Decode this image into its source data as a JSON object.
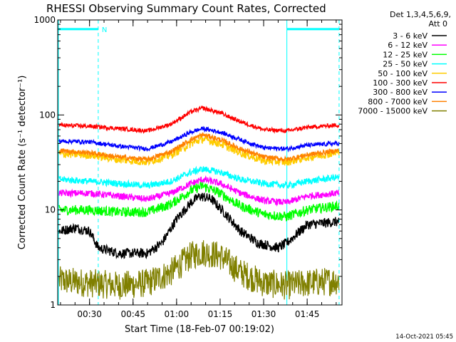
{
  "chart_data": {
    "type": "line",
    "title": "RHESSI Observing Summary Count Rates, Corrected",
    "xlabel": "Start Time (18-Feb-07 00:19:02)",
    "ylabel": "Corrected Count Rate (s⁻¹ detector⁻¹)",
    "yscale": "log",
    "ylim": [
      1,
      1000
    ],
    "xlim": [
      "00:19:02",
      "01:57:00"
    ],
    "x_ticks": [
      "00:30",
      "00:45",
      "01:00",
      "01:15",
      "01:30",
      "01:45"
    ],
    "y_ticks": [
      "1",
      "10",
      "100",
      "1000"
    ],
    "legend_header": [
      "Det 1,3,4,5,6,9,",
      "Att 0"
    ],
    "legend_position": "right",
    "timestamp": "14-Oct-2021 05:45",
    "annotations": [
      {
        "text": "N",
        "x": "00:33"
      }
    ],
    "night_bars": [
      {
        "start": "00:19:02",
        "end": "00:33:00",
        "y": 800
      },
      {
        "start": "01:38:00",
        "end": "01:56:00",
        "y": 800
      }
    ],
    "boundaries": [
      "00:33:00",
      "01:38:00",
      "01:56:00"
    ],
    "series": [
      {
        "name": "3 - 6 keV",
        "color": "#000000",
        "values_desc": "",
        "times": [
          "00:20",
          "00:25",
          "00:30",
          "00:33",
          "00:40",
          "00:50",
          "00:55",
          "01:00",
          "01:05",
          "01:08",
          "01:12",
          "01:17",
          "01:22",
          "01:28",
          "01:35",
          "01:38",
          "01:45",
          "01:55"
        ],
        "values": [
          6,
          6.5,
          6,
          4,
          3.5,
          3.5,
          4.5,
          8,
          12,
          14,
          13,
          9,
          6,
          4.5,
          4,
          4.5,
          7,
          7.5
        ]
      },
      {
        "name": "6 - 12 keV",
        "color": "#ff00ff",
        "times": [
          "00:20",
          "00:30",
          "00:40",
          "00:50",
          "00:58",
          "01:05",
          "01:09",
          "01:15",
          "01:22",
          "01:30",
          "01:38",
          "01:45",
          "01:55"
        ],
        "values": [
          15,
          15,
          14,
          13,
          15,
          19,
          21,
          19,
          15,
          12.5,
          12,
          14,
          15
        ]
      },
      {
        "name": "12 - 25 keV",
        "color": "#00ff00",
        "times": [
          "00:20",
          "00:30",
          "00:40",
          "00:50",
          "00:58",
          "01:05",
          "01:09",
          "01:15",
          "01:22",
          "01:30",
          "01:38",
          "01:45",
          "01:55"
        ],
        "values": [
          10,
          10,
          9.5,
          9.5,
          11.5,
          16,
          18,
          15,
          11,
          9,
          8.5,
          10,
          11
        ]
      },
      {
        "name": "25 - 50 keV",
        "color": "#00ffff",
        "times": [
          "00:20",
          "00:30",
          "00:40",
          "00:50",
          "00:58",
          "01:05",
          "01:09",
          "01:15",
          "01:22",
          "01:30",
          "01:38",
          "01:45",
          "01:55"
        ],
        "values": [
          21,
          20,
          19,
          18,
          20,
          25,
          27,
          25,
          21,
          19,
          18,
          20,
          22
        ]
      },
      {
        "name": "50 - 100 keV",
        "color": "#ffcc00",
        "times": [
          "00:20",
          "00:30",
          "00:40",
          "00:50",
          "00:58",
          "01:05",
          "01:09",
          "01:15",
          "01:22",
          "01:30",
          "01:38",
          "01:45",
          "01:55"
        ],
        "values": [
          39,
          38,
          34,
          32,
          38,
          50,
          56,
          50,
          40,
          33,
          32,
          36,
          40
        ]
      },
      {
        "name": "100 - 300 keV",
        "color": "#ff0000",
        "times": [
          "00:20",
          "00:30",
          "00:40",
          "00:50",
          "00:58",
          "01:05",
          "01:09",
          "01:15",
          "01:22",
          "01:30",
          "01:38",
          "01:45",
          "01:55"
        ],
        "values": [
          78,
          76,
          72,
          68,
          80,
          108,
          118,
          105,
          85,
          70,
          68,
          74,
          78
        ]
      },
      {
        "name": "300 - 800 keV",
        "color": "#0000ff",
        "times": [
          "00:20",
          "00:30",
          "00:40",
          "00:50",
          "00:58",
          "01:05",
          "01:09",
          "01:15",
          "01:22",
          "01:30",
          "01:38",
          "01:45",
          "01:55"
        ],
        "values": [
          53,
          52,
          47,
          44,
          52,
          66,
          72,
          66,
          55,
          45,
          44,
          48,
          50
        ]
      },
      {
        "name": "800 - 7000 keV",
        "color": "#ff8000",
        "times": [
          "00:20",
          "00:30",
          "00:40",
          "00:50",
          "00:58",
          "01:05",
          "01:09",
          "01:15",
          "01:22",
          "01:30",
          "01:38",
          "01:45",
          "01:55"
        ],
        "values": [
          42,
          40,
          36,
          34,
          41,
          55,
          62,
          55,
          44,
          36,
          34,
          38,
          42
        ]
      },
      {
        "name": "7000 - 15000 keV",
        "color": "#808000",
        "times": [
          "00:20",
          "00:30",
          "00:40",
          "00:50",
          "00:58",
          "01:05",
          "01:09",
          "01:15",
          "01:22",
          "01:30",
          "01:38",
          "01:45",
          "01:55"
        ],
        "values": [
          1.8,
          1.7,
          1.6,
          1.7,
          2.2,
          3.3,
          3.6,
          3.3,
          2.2,
          1.7,
          1.6,
          1.7,
          1.8
        ]
      }
    ]
  }
}
